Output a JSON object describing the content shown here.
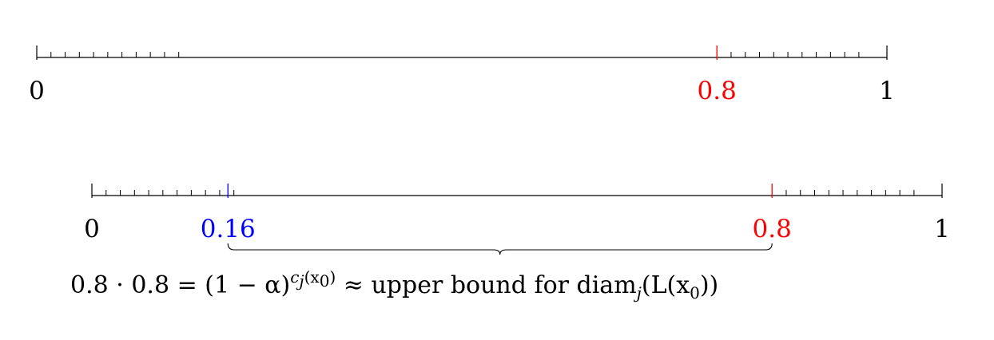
{
  "colors": {
    "axis": "#000000",
    "red": "#ff0000",
    "blue": "#0000ff"
  },
  "lines": [
    {
      "id": "top",
      "domain": [
        0,
        1
      ],
      "labels": [
        {
          "value": 0,
          "text": "0",
          "color": "#000000"
        },
        {
          "value": 0.8,
          "text": "0.8",
          "color": "#ff0000"
        },
        {
          "value": 1,
          "text": "1",
          "color": "#000000"
        }
      ],
      "markers": [
        {
          "value": 0.8,
          "color": "#ff0000"
        }
      ],
      "tick_groups": [
        {
          "from": 0,
          "count": 10,
          "step": 0.0167
        },
        {
          "from": 0.8,
          "count": 10,
          "step": 0.0167
        }
      ]
    },
    {
      "id": "bottom",
      "domain": [
        0,
        1
      ],
      "labels": [
        {
          "value": 0,
          "text": "0",
          "color": "#000000"
        },
        {
          "value": 0.16,
          "text": "0.16",
          "color": "#0000ff"
        },
        {
          "value": 0.8,
          "text": "0.8",
          "color": "#ff0000"
        },
        {
          "value": 1,
          "text": "1",
          "color": "#000000"
        }
      ],
      "markers": [
        {
          "value": 0.16,
          "color": "#0000ff"
        },
        {
          "value": 0.8,
          "color": "#ff0000"
        }
      ],
      "tick_groups": [
        {
          "from": 0,
          "count": 10,
          "step": 0.0167
        },
        {
          "from": 0.8,
          "count": 10,
          "step": 0.0167
        }
      ],
      "brace": {
        "from": 0.16,
        "to": 0.8
      }
    }
  ],
  "formula": {
    "part1": "0.8 · 0.8 = (1 − α)",
    "sup_c": "c",
    "sup_j": "j",
    "sup_args": "(x",
    "sup_sub0": "0",
    "sup_close": ")",
    "part2": " ≈ upper bound for diam",
    "sub_j": "j",
    "part3": "(L(x",
    "sub_0": "0",
    "part4": "))"
  }
}
